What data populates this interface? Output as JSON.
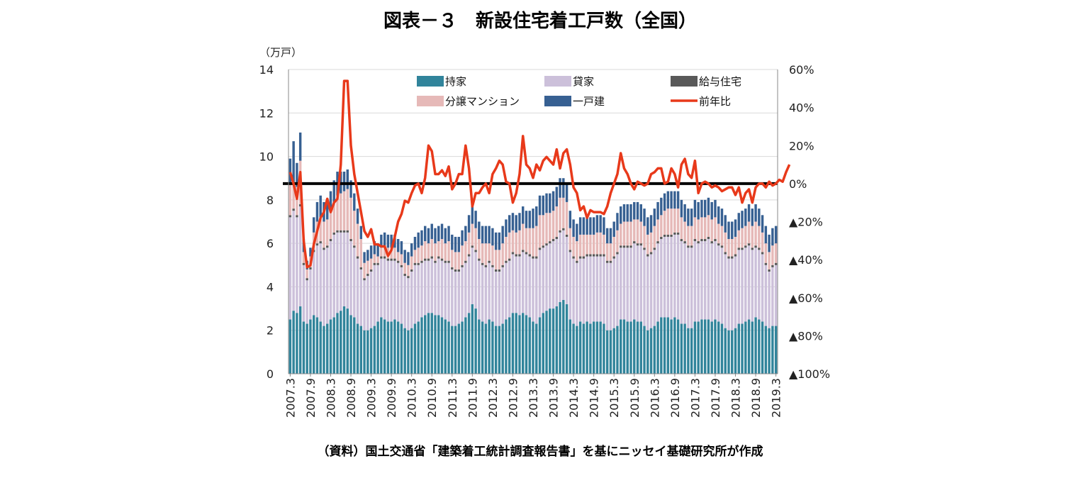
{
  "chart_data": {
    "type": "bar",
    "title": "図表－３　新設住宅着工戸数（全国）",
    "source": "（資料）国土交通省「建築着工統計調査報告書」を基にニッセイ基礎研究所が作成",
    "left_axis": {
      "unit": "（万戸）",
      "min": 0,
      "max": 14,
      "ticks": [
        "0",
        "2",
        "4",
        "6",
        "8",
        "10",
        "12",
        "14"
      ]
    },
    "right_axis": {
      "min": -100,
      "max": 60,
      "ticks": [
        {
          "value": 60,
          "label": "60%"
        },
        {
          "value": 40,
          "label": "40%"
        },
        {
          "value": 20,
          "label": "20%"
        },
        {
          "value": 0,
          "label": "0%"
        },
        {
          "value": -20,
          "label": "▲20%"
        },
        {
          "value": -40,
          "label": "▲40%"
        },
        {
          "value": -60,
          "label": "▲60%"
        },
        {
          "value": -80,
          "label": "▲80%"
        },
        {
          "value": -100,
          "label": "▲100%"
        }
      ]
    },
    "x_tick_labels": [
      "2007.3",
      "2007.9",
      "2008.3",
      "2008.9",
      "2009.3",
      "2009.9",
      "2010.3",
      "2010.9",
      "2011.3",
      "2011.9",
      "2012.3",
      "2012.9",
      "2013.3",
      "2013.9",
      "2014.3",
      "2014.9",
      "2015.3",
      "2015.9",
      "2016.3",
      "2016.9",
      "2017.3",
      "2017.9",
      "2018.3",
      "2018.9",
      "2019.3"
    ],
    "grid": true,
    "zero_line": true,
    "legend_position": "top-center",
    "legend": [
      {
        "key": "mochiie",
        "label": "持家",
        "color": "#31849b",
        "kind": "bar"
      },
      {
        "key": "kashiya",
        "label": "貸家",
        "color": "#ccc0da",
        "kind": "bar"
      },
      {
        "key": "kyuyo",
        "label": "給与住宅",
        "color": "#595959",
        "kind": "bar"
      },
      {
        "key": "mansion",
        "label": "分譲マンション",
        "color": "#e6b9b8",
        "kind": "bar"
      },
      {
        "key": "ikkodate",
        "label": "一戸建",
        "color": "#376092",
        "kind": "bar"
      },
      {
        "key": "yoy",
        "label": "前年比",
        "color": "#e8391a",
        "kind": "line"
      }
    ],
    "months": 145,
    "start_month": "2007.3",
    "end_month": "2019.3",
    "stack_order": [
      "mochiie",
      "kashiya",
      "kyuyo",
      "mansion",
      "ikkodate"
    ],
    "series": {
      "mochiie": [
        2.5,
        2.9,
        2.8,
        3.1,
        2.4,
        2.3,
        2.5,
        2.7,
        2.6,
        2.4,
        2.2,
        2.3,
        2.5,
        2.6,
        2.8,
        2.9,
        3.1,
        3.0,
        2.7,
        2.6,
        2.3,
        2.2,
        2.0,
        2.0,
        2.1,
        2.2,
        2.4,
        2.6,
        2.5,
        2.4,
        2.4,
        2.5,
        2.4,
        2.3,
        2.1,
        2.0,
        2.1,
        2.3,
        2.4,
        2.6,
        2.7,
        2.8,
        2.8,
        2.7,
        2.7,
        2.6,
        2.5,
        2.4,
        2.2,
        2.2,
        2.3,
        2.4,
        2.6,
        2.8,
        3.2,
        3.0,
        2.5,
        2.4,
        2.3,
        2.5,
        2.4,
        2.2,
        2.2,
        2.3,
        2.5,
        2.6,
        2.8,
        2.8,
        2.7,
        2.8,
        2.7,
        2.6,
        2.4,
        2.3,
        2.6,
        2.8,
        2.9,
        3.0,
        3.0,
        3.1,
        3.3,
        3.4,
        3.2,
        2.5,
        2.3,
        2.2,
        2.4,
        2.3,
        2.4,
        2.3,
        2.4,
        2.4,
        2.4,
        2.3,
        2.0,
        2.0,
        2.1,
        2.2,
        2.5,
        2.5,
        2.4,
        2.4,
        2.5,
        2.4,
        2.4,
        2.2,
        2.0,
        2.1,
        2.2,
        2.4,
        2.6,
        2.6,
        2.6,
        2.5,
        2.6,
        2.5,
        2.3,
        2.3,
        2.1,
        2.1,
        2.4,
        2.4,
        2.5,
        2.5,
        2.5,
        2.4,
        2.5,
        2.4,
        2.3,
        2.1,
        2.0,
        2.0,
        2.1,
        2.3,
        2.3,
        2.4,
        2.5,
        2.4,
        2.6,
        2.5,
        2.4,
        2.2,
        2.1,
        2.2,
        2.2
      ],
      "kashiya": [
        4.7,
        4.6,
        4.4,
        4.6,
        2.6,
        2.0,
        2.3,
        2.9,
        3.3,
        3.6,
        3.5,
        3.5,
        3.6,
        3.8,
        3.7,
        3.6,
        3.4,
        3.5,
        3.4,
        3.2,
        3.0,
        2.6,
        2.3,
        2.5,
        2.6,
        2.8,
        2.6,
        2.7,
        2.8,
        2.8,
        2.8,
        2.7,
        2.7,
        2.6,
        2.4,
        2.4,
        2.6,
        2.7,
        2.6,
        2.5,
        2.5,
        2.4,
        2.5,
        2.4,
        2.6,
        2.6,
        2.6,
        2.7,
        2.6,
        2.5,
        2.4,
        2.5,
        2.5,
        2.6,
        2.6,
        2.6,
        2.7,
        2.6,
        2.6,
        2.6,
        2.5,
        2.5,
        2.5,
        2.6,
        2.6,
        2.6,
        2.7,
        2.6,
        2.7,
        2.8,
        2.8,
        2.8,
        2.9,
        3.0,
        3.1,
        3.0,
        3.0,
        3.0,
        3.1,
        3.1,
        3.2,
        3.2,
        3.1,
        3.1,
        3.0,
        2.9,
        2.9,
        3.0,
        3.0,
        3.1,
        3.0,
        3.0,
        3.0,
        3.1,
        3.1,
        3.1,
        3.2,
        3.3,
        3.3,
        3.3,
        3.4,
        3.4,
        3.5,
        3.5,
        3.5,
        3.5,
        3.4,
        3.4,
        3.5,
        3.6,
        3.6,
        3.7,
        3.7,
        3.8,
        3.8,
        3.9,
        3.8,
        3.7,
        3.7,
        3.7,
        3.7,
        3.6,
        3.6,
        3.6,
        3.7,
        3.6,
        3.6,
        3.5,
        3.5,
        3.4,
        3.3,
        3.3,
        3.3,
        3.4,
        3.4,
        3.4,
        3.4,
        3.3,
        3.2,
        3.2,
        3.1,
        2.8,
        2.6,
        2.7,
        2.8
      ],
      "kyuyo": [
        0.1,
        0.1,
        0.1,
        0.1,
        0.1,
        0.1,
        0.1,
        0.1,
        0.1,
        0.1,
        0.1,
        0.1,
        0.1,
        0.1,
        0.1,
        0.1,
        0.1,
        0.1,
        0.1,
        0.1,
        0.1,
        0.1,
        0.1,
        0.1,
        0.1,
        0.1,
        0.1,
        0.1,
        0.1,
        0.1,
        0.1,
        0.1,
        0.1,
        0.1,
        0.1,
        0.1,
        0.1,
        0.1,
        0.1,
        0.1,
        0.1,
        0.1,
        0.1,
        0.1,
        0.1,
        0.1,
        0.1,
        0.1,
        0.1,
        0.1,
        0.1,
        0.1,
        0.1,
        0.1,
        0.1,
        0.1,
        0.1,
        0.1,
        0.1,
        0.1,
        0.1,
        0.1,
        0.1,
        0.1,
        0.1,
        0.1,
        0.1,
        0.1,
        0.1,
        0.1,
        0.1,
        0.1,
        0.1,
        0.1,
        0.1,
        0.1,
        0.1,
        0.1,
        0.1,
        0.1,
        0.1,
        0.1,
        0.1,
        0.1,
        0.1,
        0.1,
        0.1,
        0.1,
        0.1,
        0.1,
        0.1,
        0.1,
        0.1,
        0.1,
        0.1,
        0.1,
        0.1,
        0.1,
        0.1,
        0.1,
        0.1,
        0.1,
        0.1,
        0.1,
        0.1,
        0.1,
        0.1,
        0.1,
        0.1,
        0.1,
        0.1,
        0.1,
        0.1,
        0.1,
        0.1,
        0.1,
        0.1,
        0.1,
        0.1,
        0.1,
        0.1,
        0.1,
        0.1,
        0.1,
        0.1,
        0.1,
        0.1,
        0.1,
        0.1,
        0.1,
        0.1,
        0.1,
        0.1,
        0.1,
        0.1,
        0.1,
        0.1,
        0.1,
        0.1,
        0.1,
        0.1,
        0.1,
        0.1,
        0.1,
        0.1
      ],
      "mansion": [
        1.4,
        1.2,
        1.3,
        2.0,
        0.5,
        0.4,
        0.5,
        0.8,
        1.0,
        1.1,
        1.2,
        1.2,
        1.3,
        1.4,
        1.6,
        1.7,
        1.8,
        1.9,
        1.9,
        1.6,
        1.5,
        1.3,
        0.7,
        0.6,
        0.5,
        0.4,
        0.3,
        0.4,
        0.5,
        0.5,
        0.5,
        0.5,
        0.4,
        0.5,
        0.5,
        0.5,
        0.6,
        0.6,
        0.7,
        0.7,
        0.8,
        0.7,
        0.8,
        0.8,
        0.7,
        0.9,
        0.8,
        0.9,
        0.8,
        0.8,
        0.8,
        0.9,
        0.9,
        1.0,
        1.0,
        1.0,
        0.9,
        0.9,
        1.0,
        0.8,
        0.9,
        0.9,
        0.9,
        1.0,
        1.1,
        1.2,
        1.0,
        1.0,
        1.1,
        1.2,
        1.1,
        1.2,
        1.3,
        1.4,
        1.5,
        1.4,
        1.4,
        1.3,
        1.3,
        1.4,
        1.5,
        1.4,
        1.5,
        1.0,
        0.9,
        0.9,
        1.0,
        1.0,
        0.9,
        0.9,
        0.9,
        1.0,
        1.0,
        0.9,
        0.8,
        0.8,
        0.9,
        1.0,
        1.0,
        1.1,
        1.1,
        1.1,
        1.0,
        1.1,
        1.0,
        1.0,
        0.9,
        0.9,
        1.0,
        1.0,
        1.0,
        1.1,
        1.2,
        1.2,
        1.1,
        1.1,
        1.0,
        0.9,
        0.9,
        0.9,
        1.0,
        1.0,
        1.0,
        1.0,
        1.0,
        1.0,
        1.0,
        0.9,
        0.9,
        0.9,
        0.8,
        0.8,
        0.8,
        0.8,
        0.9,
        0.9,
        1.0,
        1.0,
        1.1,
        1.0,
        0.9,
        0.9,
        0.8,
        0.9,
        0.9
      ],
      "ikkodate": [
        1.2,
        1.9,
        1.1,
        1.3,
        0.6,
        0.4,
        0.4,
        0.7,
        0.9,
        1.0,
        0.9,
        0.9,
        0.9,
        1.0,
        1.1,
        1.0,
        0.9,
        0.9,
        0.8,
        0.8,
        0.7,
        0.6,
        0.5,
        0.5,
        0.6,
        0.6,
        0.6,
        0.6,
        0.6,
        0.6,
        0.6,
        0.6,
        0.6,
        0.6,
        0.6,
        0.6,
        0.6,
        0.6,
        0.7,
        0.7,
        0.7,
        0.7,
        0.7,
        0.7,
        0.7,
        0.7,
        0.7,
        0.7,
        0.7,
        0.7,
        0.7,
        0.7,
        0.7,
        0.8,
        0.8,
        0.8,
        0.8,
        0.8,
        0.8,
        0.8,
        0.8,
        0.8,
        0.8,
        0.8,
        0.8,
        0.8,
        0.8,
        0.8,
        0.8,
        0.8,
        0.8,
        0.8,
        0.9,
        0.9,
        0.9,
        0.9,
        0.9,
        0.9,
        0.9,
        0.9,
        0.9,
        0.9,
        0.9,
        0.8,
        0.8,
        0.8,
        0.8,
        0.8,
        0.8,
        0.8,
        0.8,
        0.8,
        0.8,
        0.8,
        0.7,
        0.7,
        0.7,
        0.8,
        0.8,
        0.8,
        0.8,
        0.8,
        0.8,
        0.8,
        0.8,
        0.8,
        0.8,
        0.8,
        0.8,
        0.8,
        0.8,
        0.8,
        0.8,
        0.8,
        0.8,
        0.8,
        0.8,
        0.8,
        0.8,
        0.8,
        0.8,
        0.8,
        0.8,
        0.8,
        0.8,
        0.8,
        0.8,
        0.8,
        0.8,
        0.8,
        0.8,
        0.8,
        0.8,
        0.8,
        0.8,
        0.8,
        0.8,
        0.8,
        0.8,
        0.8,
        0.8,
        0.8,
        0.8,
        0.8,
        0.8
      ],
      "yoy": [
        6,
        0,
        -8,
        6,
        -30,
        -44,
        -43,
        -32,
        -25,
        -18,
        -15,
        -8,
        -15,
        -10,
        -8,
        10,
        54,
        54,
        20,
        5,
        -5,
        -15,
        -25,
        -28,
        -24,
        -32,
        -32,
        -33,
        -33,
        -38,
        -35,
        -28,
        -20,
        -16,
        -9,
        -10,
        -5,
        -1,
        0,
        -5,
        3,
        20,
        17,
        5,
        5,
        7,
        4,
        9,
        -3,
        0,
        5,
        5,
        20,
        8,
        -12,
        -5,
        -5,
        -2,
        0,
        -5,
        5,
        8,
        12,
        10,
        1,
        0,
        -10,
        -5,
        5,
        25,
        10,
        8,
        3,
        10,
        7,
        12,
        14,
        12,
        10,
        18,
        8,
        16,
        18,
        10,
        -2,
        -5,
        -14,
        -12,
        -18,
        -14,
        -15,
        -15,
        -15,
        -16,
        -12,
        -5,
        0,
        5,
        16,
        8,
        5,
        0,
        -3,
        1,
        0,
        -1,
        0,
        5,
        6,
        8,
        8,
        0,
        1,
        8,
        5,
        -2,
        10,
        13,
        5,
        3,
        12,
        -5,
        0,
        1,
        0,
        -2,
        -1,
        -2,
        -4,
        -3,
        -2,
        -2,
        -6,
        -2,
        -10,
        -5,
        -3,
        -10,
        -2,
        0,
        0,
        -2,
        1,
        -1,
        0,
        2,
        1,
        6,
        10
      ]
    }
  }
}
